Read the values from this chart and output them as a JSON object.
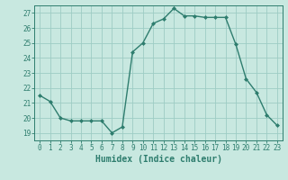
{
  "x": [
    0,
    1,
    2,
    3,
    4,
    5,
    6,
    7,
    8,
    9,
    10,
    11,
    12,
    13,
    14,
    15,
    16,
    17,
    18,
    19,
    20,
    21,
    22,
    23
  ],
  "y": [
    21.5,
    21.1,
    20.0,
    19.8,
    19.8,
    19.8,
    19.8,
    19.0,
    19.4,
    24.4,
    25.0,
    26.3,
    26.6,
    27.3,
    26.8,
    26.8,
    26.7,
    26.7,
    26.7,
    24.9,
    22.6,
    21.7,
    20.2,
    19.5
  ],
  "line_color": "#2e7d6e",
  "marker": "D",
  "marker_size": 2.0,
  "bg_color": "#c8e8e0",
  "grid_color": "#9eccc4",
  "xlabel": "Humidex (Indice chaleur)",
  "xlim": [
    -0.5,
    23.5
  ],
  "ylim": [
    18.5,
    27.5
  ],
  "yticks": [
    19,
    20,
    21,
    22,
    23,
    24,
    25,
    26,
    27
  ],
  "xticks": [
    0,
    1,
    2,
    3,
    4,
    5,
    6,
    7,
    8,
    9,
    10,
    11,
    12,
    13,
    14,
    15,
    16,
    17,
    18,
    19,
    20,
    21,
    22,
    23
  ],
  "tick_label_size": 5.5,
  "xlabel_size": 7.0
}
